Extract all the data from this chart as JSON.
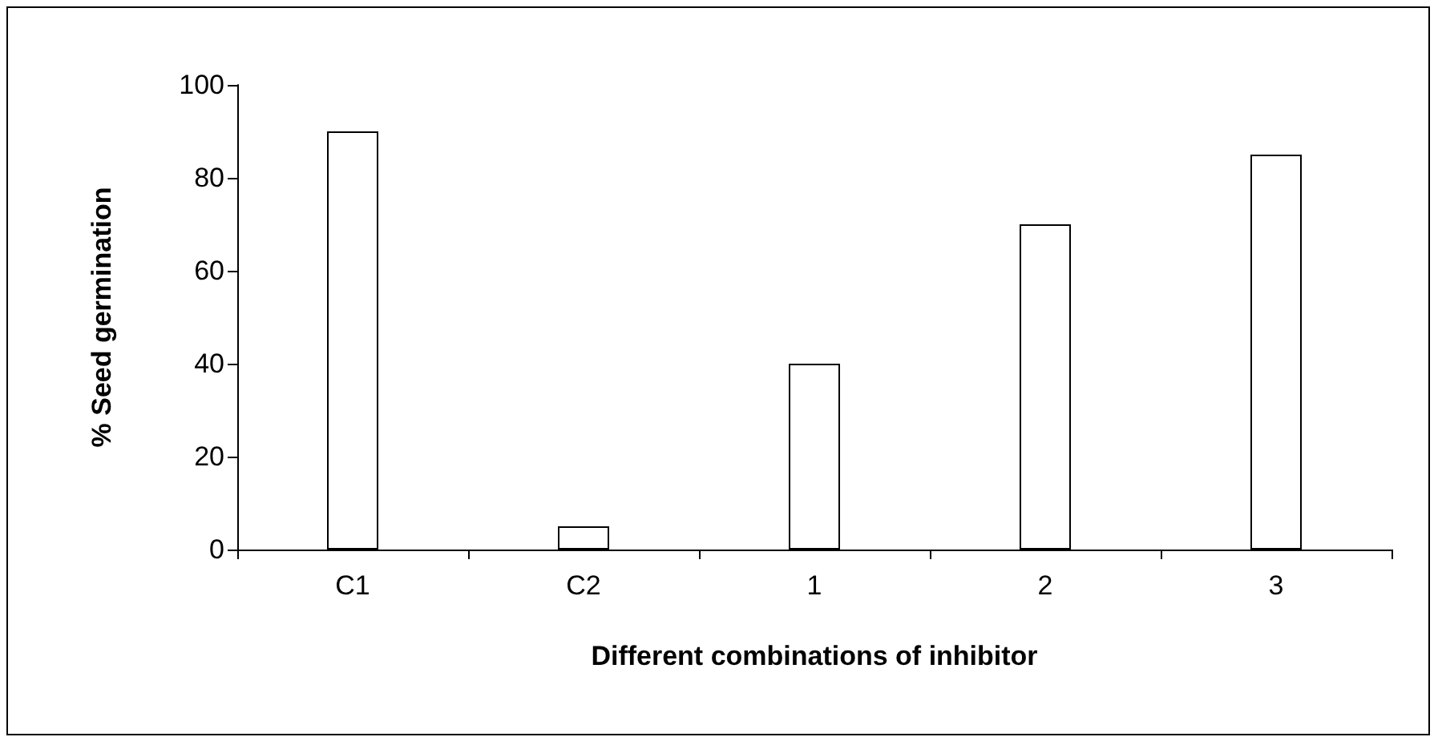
{
  "chart_data": {
    "type": "bar",
    "xlabel": "Different combinations of inhibitor",
    "ylabel": "% Seed germination",
    "categories": [
      "C1",
      "C2",
      "1",
      "2",
      "3"
    ],
    "values": [
      90,
      5,
      40,
      70,
      85
    ],
    "color": "#ffffff",
    "ylim": [
      0,
      100
    ],
    "yticks": [
      0,
      20,
      40,
      60,
      80,
      100
    ],
    "grid": false
  }
}
